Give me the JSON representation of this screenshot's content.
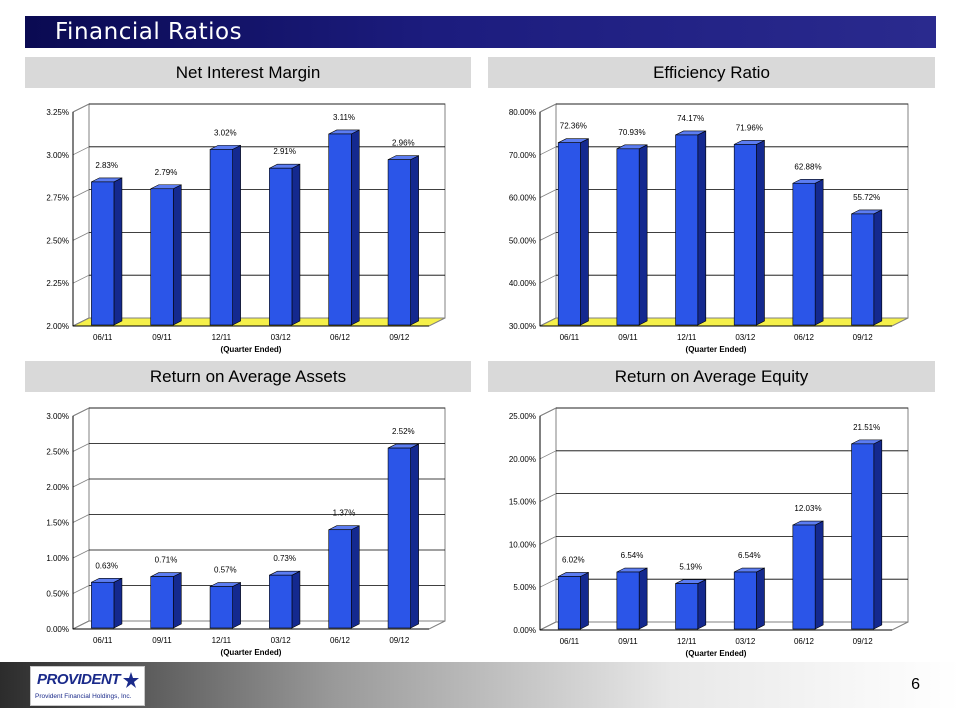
{
  "slide": {
    "title": "Financial Ratios",
    "page_number": "6"
  },
  "logo": {
    "brand": "PROVIDENT",
    "subtitle": "Provident Financial Holdings, Inc."
  },
  "colors": {
    "bar_face": "#2b55e8",
    "bar_side": "#14298f",
    "bar_top": "#5c7df2",
    "floor": "#f5f04a",
    "title_bar": "#1a1a78"
  },
  "chart_data": [
    {
      "type": "bar",
      "title": "Net Interest Margin",
      "categories": [
        "06/11",
        "09/11",
        "12/11",
        "03/12",
        "06/12",
        "09/12"
      ],
      "values": [
        2.83,
        2.79,
        3.02,
        2.91,
        3.11,
        2.96
      ],
      "data_labels": [
        "2.83%",
        "2.79%",
        "3.02%",
        "2.91%",
        "3.11%",
        "2.96%"
      ],
      "xlabel": "(Quarter Ended)",
      "ylim": [
        2.0,
        3.25
      ],
      "yticks": [
        "2.00%",
        "2.25%",
        "2.50%",
        "2.75%",
        "3.00%",
        "3.25%"
      ],
      "grid": true,
      "floor_highlight": true
    },
    {
      "type": "bar",
      "title": "Efficiency Ratio",
      "categories": [
        "06/11",
        "09/11",
        "12/11",
        "03/12",
        "06/12",
        "09/12"
      ],
      "values": [
        72.36,
        70.93,
        74.17,
        71.96,
        62.88,
        55.72
      ],
      "data_labels": [
        "72.36%",
        "70.93%",
        "74.17%",
        "71.96%",
        "62.88%",
        "55.72%"
      ],
      "xlabel": "(Quarter Ended)",
      "ylim": [
        30.0,
        80.0
      ],
      "yticks": [
        "30.00%",
        "40.00%",
        "50.00%",
        "60.00%",
        "70.00%",
        "80.00%"
      ],
      "grid": true,
      "floor_highlight": true
    },
    {
      "type": "bar",
      "title": "Return on Average Assets",
      "categories": [
        "06/11",
        "09/11",
        "12/11",
        "03/12",
        "06/12",
        "09/12"
      ],
      "values": [
        0.63,
        0.71,
        0.57,
        0.73,
        1.37,
        2.52
      ],
      "data_labels": [
        "0.63%",
        "0.71%",
        "0.57%",
        "0.73%",
        "1.37%",
        "2.52%"
      ],
      "xlabel": "(Quarter Ended)",
      "ylim": [
        0.0,
        3.0
      ],
      "yticks": [
        "0.00%",
        "0.50%",
        "1.00%",
        "1.50%",
        "2.00%",
        "2.50%",
        "3.00%"
      ],
      "grid": true,
      "floor_highlight": false
    },
    {
      "type": "bar",
      "title": "Return on Average Equity",
      "categories": [
        "06/11",
        "09/11",
        "12/11",
        "03/12",
        "06/12",
        "09/12"
      ],
      "values": [
        6.02,
        6.54,
        5.19,
        6.54,
        12.03,
        21.51
      ],
      "data_labels": [
        "6.02%",
        "6.54%",
        "5.19%",
        "6.54%",
        "12.03%",
        "21.51%"
      ],
      "xlabel": "(Quarter Ended)",
      "ylim": [
        0.0,
        25.0
      ],
      "yticks": [
        "0.00%",
        "5.00%",
        "10.00%",
        "15.00%",
        "20.00%",
        "25.00%"
      ],
      "grid": true,
      "floor_highlight": false
    }
  ]
}
